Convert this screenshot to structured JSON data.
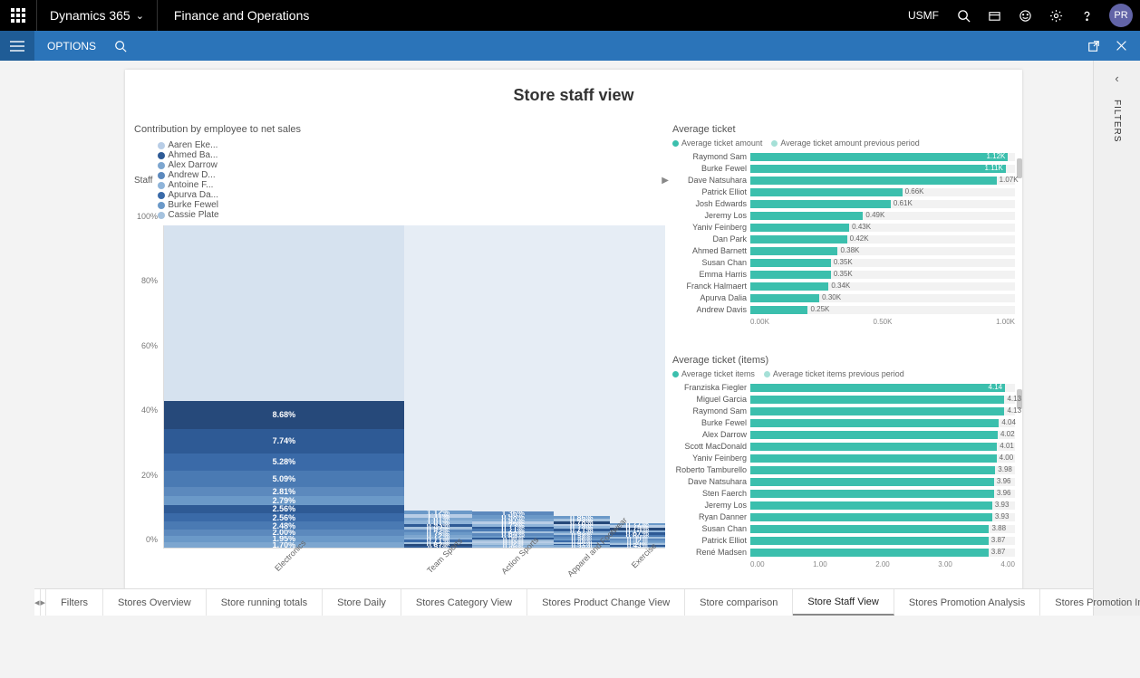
{
  "topbar": {
    "brand": "Dynamics 365",
    "app": "Finance and Operations",
    "company": "USMF",
    "avatar": "PR"
  },
  "optbar": {
    "options": "OPTIONS"
  },
  "filters_panel": "FILTERS",
  "page": {
    "title": "Store staff view"
  },
  "tabs": {
    "items": [
      "Filters",
      "Stores Overview",
      "Store running totals",
      "Store Daily",
      "Stores Category View",
      "Stores Product Change View",
      "Store comparison",
      "Store Staff View",
      "Stores Promotion Analysis",
      "Stores Promotion Impact Analysis"
    ],
    "active": 7
  },
  "contribution": {
    "title": "Contribution by employee to net sales",
    "legend_label": "Staff",
    "legend_items": [
      "Aaren Eke...",
      "Ahmed Ba...",
      "Alex Darrow",
      "Andrew D...",
      "Antoine F...",
      "Apurva Da...",
      "Burke Fewel",
      "Cassie Plate"
    ],
    "legend_colors": [
      "#b8cde6",
      "#2e5a95",
      "#7da6cf",
      "#5c89bd",
      "#8fb4d9",
      "#3a6aa8",
      "#6b99c8",
      "#a5c2de"
    ],
    "yticks": [
      "0%",
      "20%",
      "40%",
      "60%",
      "80%",
      "100%"
    ],
    "categories": [
      "Electronics",
      "Team Sports",
      "Action Sports",
      "Apparel and Footwear",
      "Exercise"
    ],
    "col_widths": [
      2.8,
      0.8,
      0.95,
      0.65,
      0.65
    ],
    "columns": [
      [
        {
          "v": 1.7,
          "c": "#7da6cf"
        },
        {
          "v": 1.95,
          "c": "#6b99c8"
        },
        {
          "v": 2.0,
          "c": "#5c89bd"
        },
        {
          "v": 2.48,
          "c": "#4a7ab3"
        },
        {
          "v": 2.56,
          "c": "#3a6aa8"
        },
        {
          "v": 2.56,
          "c": "#2e5a95"
        },
        {
          "v": 2.79,
          "c": "#6b99c8"
        },
        {
          "v": 2.81,
          "c": "#5c89bd"
        },
        {
          "v": 5.09,
          "c": "#4a7ab3"
        },
        {
          "v": 5.28,
          "c": "#3a6aa8"
        },
        {
          "v": 7.74,
          "c": "#2e5a95"
        },
        {
          "v": 8.68,
          "c": "#26497a"
        },
        {
          "v": 54.36,
          "c": "#d6e2ef",
          "nolabel": true
        }
      ],
      [
        {
          "v": 0.51,
          "c": "#2e5a95"
        },
        {
          "v": 0.62,
          "c": "#26497a"
        },
        {
          "v": 0.68,
          "c": "#a5c2de"
        },
        {
          "v": 0.71,
          "c": "#3a6aa8",
          "wht": true
        },
        {
          "v": 0.72,
          "c": "#8fb4d9"
        },
        {
          "v": 0.72,
          "c": "#7da6cf"
        },
        {
          "v": 0.78,
          "c": "#6b99c8"
        },
        {
          "v": 0.82,
          "c": "#5c89bd"
        },
        {
          "v": 0.92,
          "c": "#a5c2de"
        },
        {
          "v": 0.93,
          "c": "#2e5a95"
        },
        {
          "v": 1.01,
          "c": "#8fb4d9"
        },
        {
          "v": 1.01,
          "c": "#7da6cf"
        },
        {
          "v": 1.11,
          "c": "#b8cde6"
        },
        {
          "v": 1.12,
          "c": "#6b99c8"
        },
        {
          "v": 88.34,
          "c": "#e6edf5",
          "nolabel": true
        }
      ],
      [
        {
          "v": 0.46,
          "c": "#8fb4d9"
        },
        {
          "v": 0.5,
          "c": "#7da6cf"
        },
        {
          "v": 0.52,
          "c": "#a5c2de"
        },
        {
          "v": 0.53,
          "c": "#b8cde6"
        },
        {
          "v": 0.57,
          "c": "#9cbad7"
        },
        {
          "v": 0.58,
          "c": "#2e5a95"
        },
        {
          "v": 0.64,
          "c": "#6b99c8"
        },
        {
          "v": 0.64,
          "c": "#5c89bd"
        },
        {
          "v": 0.68,
          "c": "#a5c2de"
        },
        {
          "v": 0.71,
          "c": "#4a7ab3"
        },
        {
          "v": 0.71,
          "c": "#2e5a95"
        },
        {
          "v": 0.73,
          "c": "#8fb4d9"
        },
        {
          "v": 0.86,
          "c": "#b8cde6"
        },
        {
          "v": 0.91,
          "c": "#7da6cf"
        },
        {
          "v": 0.98,
          "c": "#6b99c8"
        },
        {
          "v": 1.36,
          "c": "#5c89bd"
        },
        {
          "v": 88.62,
          "c": "#e6edf5",
          "nolabel": true
        }
      ],
      [
        {
          "v": 0.38,
          "c": "#8fb4d9"
        },
        {
          "v": 0.39,
          "c": "#7da6cf"
        },
        {
          "v": 0.47,
          "c": "#2e5a95"
        },
        {
          "v": 0.48,
          "c": "#a5c2de"
        },
        {
          "v": 0.48,
          "c": "#3a6aa8"
        },
        {
          "v": 0.56,
          "c": "#6b99c8"
        },
        {
          "v": 0.58,
          "c": "#5c89bd"
        },
        {
          "v": 0.58,
          "c": "#4a7ab3"
        },
        {
          "v": 0.59,
          "c": "#a5c2de"
        },
        {
          "v": 0.67,
          "c": "#7da6cf"
        },
        {
          "v": 0.71,
          "c": "#2e5a95"
        },
        {
          "v": 0.74,
          "c": "#8fb4d9"
        },
        {
          "v": 0.76,
          "c": "#b8cde6"
        },
        {
          "v": 0.78,
          "c": "#26497a"
        },
        {
          "v": 0.84,
          "c": "#a5c2de"
        },
        {
          "v": 0.86,
          "c": "#6b99c8"
        },
        {
          "v": 90.13,
          "c": "#e6edf5",
          "nolabel": true
        }
      ],
      [
        {
          "v": 0.39,
          "c": "#8fb4d9"
        },
        {
          "v": 0.43,
          "c": "#2e5a95"
        },
        {
          "v": 0.5,
          "c": "#a5c2de"
        },
        {
          "v": 0.5,
          "c": "#7da6cf"
        },
        {
          "v": 0.52,
          "c": "#6b99c8"
        },
        {
          "v": 0.55,
          "c": "#5c89bd"
        },
        {
          "v": 0.58,
          "c": "#a5c2de"
        },
        {
          "v": 0.6,
          "c": "#4a7ab3"
        },
        {
          "v": 0.67,
          "c": "#2e5a95"
        },
        {
          "v": 0.7,
          "c": "#8fb4d9"
        },
        {
          "v": 0.75,
          "c": "#26497a"
        },
        {
          "v": 0.75,
          "c": "#b8cde6"
        },
        {
          "v": 0.77,
          "c": "#6b99c8"
        },
        {
          "v": 92.29,
          "c": "#e6edf5",
          "nolabel": true
        }
      ]
    ]
  },
  "avg_ticket": {
    "title": "Average ticket",
    "legend": [
      "Average ticket amount",
      "Average ticket amount previous period"
    ],
    "legend_colors": [
      "#3bbfad",
      "#a5e0d7"
    ],
    "max": 1.15,
    "xticks": [
      "0.00K",
      "0.50K",
      "1.00K"
    ],
    "rows": [
      {
        "n": "Raymond Sam",
        "v": 1.12,
        "l": "1.12K",
        "in": true
      },
      {
        "n": "Burke Fewel",
        "v": 1.11,
        "l": "1.11K",
        "in": true
      },
      {
        "n": "Dave Natsuhara",
        "v": 1.07,
        "l": "1.07K"
      },
      {
        "n": "Patrick Elliot",
        "v": 0.66,
        "l": "0.66K"
      },
      {
        "n": "Josh Edwards",
        "v": 0.61,
        "l": "0.61K"
      },
      {
        "n": "Jeremy Los",
        "v": 0.49,
        "l": "0.49K"
      },
      {
        "n": "Yaniv Feinberg",
        "v": 0.43,
        "l": "0.43K"
      },
      {
        "n": "Dan Park",
        "v": 0.42,
        "l": "0.42K"
      },
      {
        "n": "Ahmed Barnett",
        "v": 0.38,
        "l": "0.38K"
      },
      {
        "n": "Susan Chan",
        "v": 0.35,
        "l": "0.35K"
      },
      {
        "n": "Emma Harris",
        "v": 0.35,
        "l": "0.35K"
      },
      {
        "n": "Franck Halmaert",
        "v": 0.34,
        "l": "0.34K"
      },
      {
        "n": "Apurva Dalia",
        "v": 0.3,
        "l": "0.30K"
      },
      {
        "n": "Andrew Davis",
        "v": 0.25,
        "l": "0.25K"
      }
    ]
  },
  "avg_ticket_items": {
    "title": "Average ticket (items)",
    "legend": [
      "Average ticket items",
      "Average ticket items previous period"
    ],
    "legend_colors": [
      "#3bbfad",
      "#a5e0d7"
    ],
    "max": 4.3,
    "xticks": [
      "0.00",
      "1.00",
      "2.00",
      "3.00",
      "4.00"
    ],
    "rows": [
      {
        "n": "Franziska Fiegler",
        "v": 4.14,
        "l": "4.14",
        "in": true
      },
      {
        "n": "Miguel Garcia",
        "v": 4.13,
        "l": "4.13"
      },
      {
        "n": "Raymond Sam",
        "v": 4.13,
        "l": "4.13"
      },
      {
        "n": "Burke Fewel",
        "v": 4.04,
        "l": "4.04"
      },
      {
        "n": "Alex Darrow",
        "v": 4.02,
        "l": "4.02"
      },
      {
        "n": "Scott MacDonald",
        "v": 4.01,
        "l": "4.01"
      },
      {
        "n": "Yaniv Feinberg",
        "v": 4.0,
        "l": "4.00"
      },
      {
        "n": "Roberto Tamburello",
        "v": 3.98,
        "l": "3.98"
      },
      {
        "n": "Dave Natsuhara",
        "v": 3.96,
        "l": "3.96"
      },
      {
        "n": "Sten Faerch",
        "v": 3.96,
        "l": "3.96"
      },
      {
        "n": "Jeremy Los",
        "v": 3.93,
        "l": "3.93"
      },
      {
        "n": "Ryan Danner",
        "v": 3.93,
        "l": "3.93"
      },
      {
        "n": "Susan Chan",
        "v": 3.88,
        "l": "3.88"
      },
      {
        "n": "Patrick Elliot",
        "v": 3.87,
        "l": "3.87"
      },
      {
        "n": "René Madsen",
        "v": 3.87,
        "l": "3.87"
      }
    ]
  }
}
